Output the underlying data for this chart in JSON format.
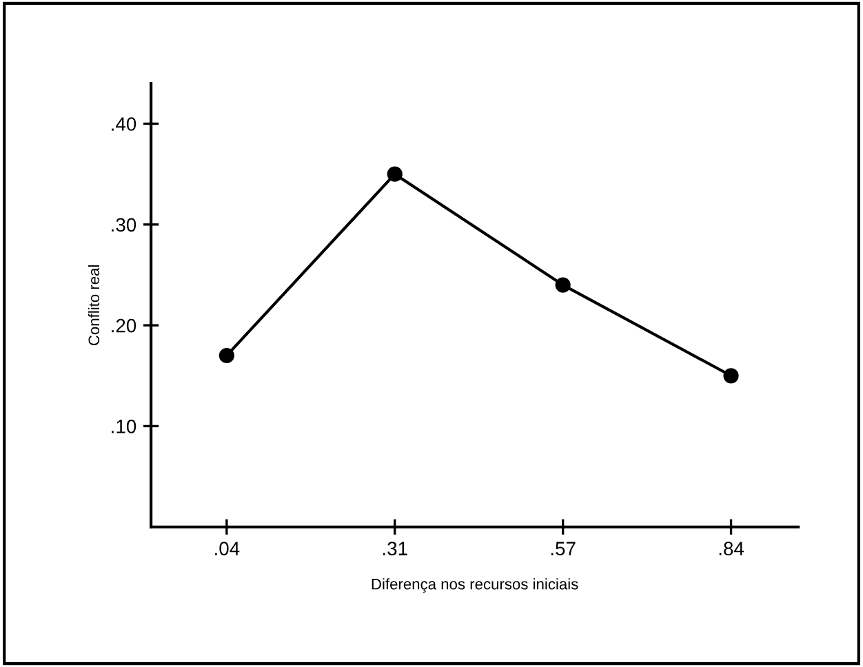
{
  "chart_data": {
    "type": "line",
    "xlabel": "Diferença nos recursos iniciais",
    "ylabel": "Conflito real",
    "categories": [
      ".04",
      ".31",
      ".57",
      ".84"
    ],
    "values": [
      0.17,
      0.35,
      0.24,
      0.15
    ],
    "color": "#000000",
    "marker": "circle",
    "line_style": "solid",
    "grid": false,
    "legend": false,
    "ylim": [
      0,
      0.44
    ],
    "yticks": [
      {
        "value": 0.1,
        "label": ".10"
      },
      {
        "value": 0.2,
        "label": ".20"
      },
      {
        "value": 0.3,
        "label": ".30"
      },
      {
        "value": 0.4,
        "label": ".40"
      }
    ]
  }
}
